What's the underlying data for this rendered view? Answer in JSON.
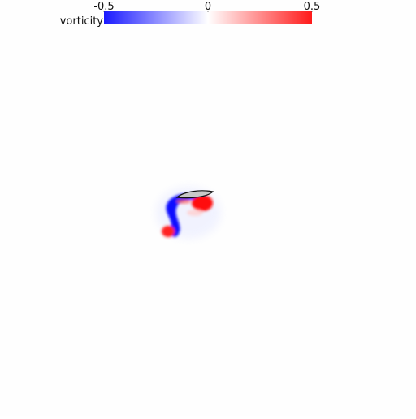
{
  "colorbar": {
    "label": "vorticity",
    "lim": [
      -0.5,
      0.5
    ],
    "ticks": [
      -0.5,
      0,
      0.5
    ],
    "colors": [
      "#1a1aff",
      "#ffffff",
      "#ff1a1a"
    ]
  }
}
